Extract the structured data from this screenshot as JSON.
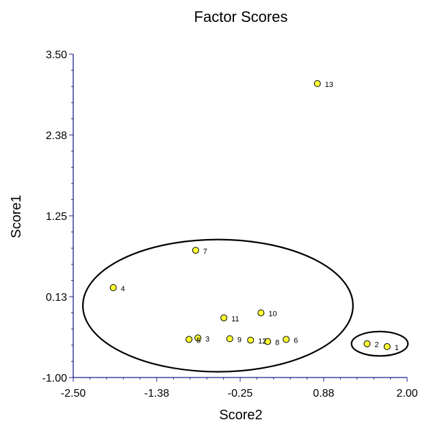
{
  "chart_data": {
    "type": "scatter",
    "title": "Factor Scores",
    "xlabel": "Score2",
    "ylabel": "Score1",
    "xlim": [
      -2.5,
      2.0
    ],
    "ylim": [
      -1.0,
      3.5
    ],
    "xticks": [
      "-2.50",
      "-1.38",
      "-0.25",
      "0.88",
      "2.00"
    ],
    "yticks": [
      "-1.00",
      "0.13",
      "1.25",
      "2.38",
      "3.50"
    ],
    "grid": false,
    "legend": "none",
    "marker_color": "#ffff33",
    "marker_edge": "#000000",
    "points": [
      {
        "label": "1",
        "x": 1.73,
        "y": -0.57
      },
      {
        "label": "2",
        "x": 1.46,
        "y": -0.53
      },
      {
        "label": "3",
        "x": -0.82,
        "y": -0.45
      },
      {
        "label": "4",
        "x": -1.96,
        "y": 0.25
      },
      {
        "label": "5",
        "x": -0.94,
        "y": -0.47
      },
      {
        "label": "6",
        "x": 0.37,
        "y": -0.47
      },
      {
        "label": "7",
        "x": -0.85,
        "y": 0.77
      },
      {
        "label": "8",
        "x": 0.12,
        "y": -0.5
      },
      {
        "label": "9",
        "x": -0.39,
        "y": -0.46
      },
      {
        "label": "10",
        "x": 0.03,
        "y": -0.1
      },
      {
        "label": "11",
        "x": -0.47,
        "y": -0.17
      },
      {
        "label": "12",
        "x": -0.11,
        "y": -0.48
      },
      {
        "label": "13",
        "x": 0.79,
        "y": 3.09
      }
    ],
    "clusters": [
      {
        "cx": -0.55,
        "cy": 0.0,
        "rx": 1.82,
        "ry": 0.92
      },
      {
        "cx": 1.63,
        "cy": -0.53,
        "rx": 0.38,
        "ry": 0.17
      }
    ]
  }
}
